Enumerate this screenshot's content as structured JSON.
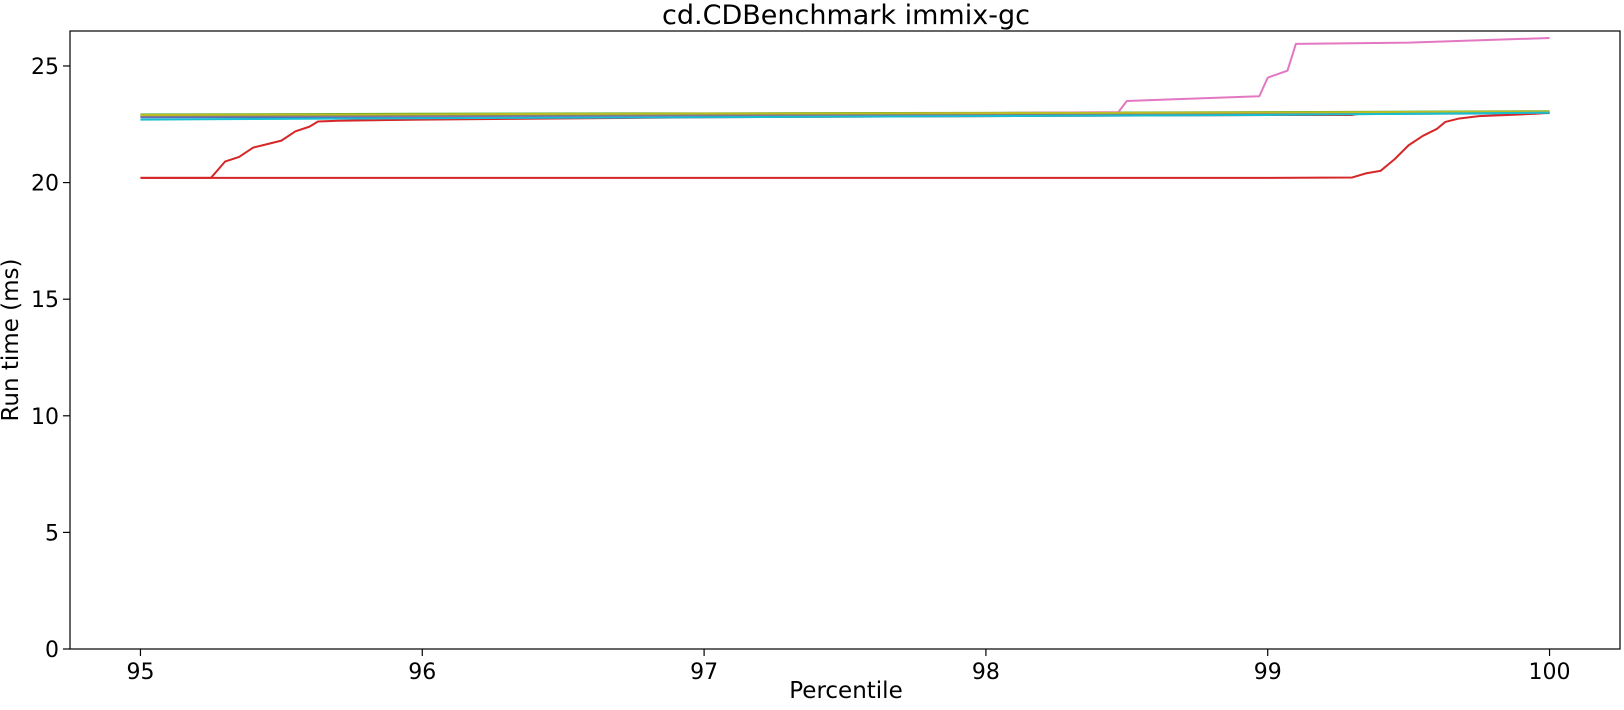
{
  "chart_data": {
    "type": "line",
    "title": "cd.CDBenchmark immix-gc",
    "xlabel": "Percentile",
    "ylabel": "Run time (ms)",
    "xlim": [
      94.75,
      100.25
    ],
    "ylim": [
      0,
      26.5
    ],
    "xticks": [
      95,
      96,
      97,
      98,
      99,
      100
    ],
    "yticks": [
      0,
      5,
      10,
      15,
      20,
      25
    ],
    "grid": false,
    "series": [
      {
        "color": "#1f77b4",
        "x": [
          95,
          96,
          97,
          98,
          99,
          100
        ],
        "y": [
          22.8,
          22.82,
          22.85,
          22.88,
          22.92,
          22.98
        ]
      },
      {
        "color": "#ff7f0e",
        "x": [
          95,
          96,
          97,
          98,
          99,
          100
        ],
        "y": [
          22.85,
          22.87,
          22.9,
          22.93,
          22.96,
          23.0
        ]
      },
      {
        "color": "#2ca02c",
        "x": [
          95,
          96,
          97,
          98,
          99,
          100
        ],
        "y": [
          22.92,
          22.95,
          22.97,
          22.99,
          23.02,
          23.06
        ]
      },
      {
        "color": "#d62728",
        "x": [
          95,
          95.25,
          95.3,
          95.35,
          95.4,
          95.45,
          95.5,
          95.55,
          95.6,
          95.63,
          95.7,
          96,
          97,
          98,
          99,
          99.3,
          99.35,
          99.4,
          99.45,
          99.5,
          99.55,
          99.6,
          99.65,
          99.7,
          99.8,
          99.9,
          100
        ],
        "y": [
          20.2,
          20.2,
          20.9,
          21.1,
          21.5,
          21.65,
          21.8,
          22.2,
          22.4,
          22.62,
          22.65,
          22.7,
          22.8,
          22.85,
          22.9,
          22.9,
          23.0,
          23.0,
          23.0,
          23.0,
          23.0,
          23.0,
          23.0,
          23.0,
          23.0,
          23.0,
          23.0
        ]
      },
      {
        "color": "#d62728",
        "x": [
          95,
          96,
          97,
          98,
          99,
          99.3,
          99.35,
          99.4,
          99.45,
          99.5,
          99.55,
          99.6,
          99.63,
          99.68,
          99.75,
          99.85,
          99.95,
          100
        ],
        "y": [
          20.2,
          20.2,
          20.2,
          20.2,
          20.2,
          20.22,
          20.4,
          20.5,
          21.0,
          21.6,
          22.0,
          22.3,
          22.6,
          22.75,
          22.85,
          22.9,
          22.95,
          23.0
        ]
      },
      {
        "color": "#9467bd",
        "x": [
          95,
          96,
          97,
          98,
          99,
          100
        ],
        "y": [
          22.83,
          22.85,
          22.88,
          22.91,
          22.95,
          23.0
        ]
      },
      {
        "color": "#e377c2",
        "x": [
          95,
          96,
          97,
          98,
          98.47,
          98.5,
          98.97,
          99.0,
          99.07,
          99.1,
          99.5,
          100
        ],
        "y": [
          22.87,
          22.9,
          22.93,
          22.98,
          23.02,
          23.5,
          23.7,
          24.5,
          24.8,
          25.95,
          26.0,
          26.2
        ]
      },
      {
        "color": "#7f7f7f",
        "x": [
          95,
          96,
          97,
          98,
          99,
          100
        ],
        "y": [
          22.86,
          22.88,
          22.91,
          22.94,
          22.97,
          23.02
        ]
      },
      {
        "color": "#bcbd22",
        "x": [
          95,
          96,
          97,
          98,
          99,
          100
        ],
        "y": [
          22.9,
          22.93,
          22.96,
          22.98,
          23.01,
          23.05
        ]
      },
      {
        "color": "#17becf",
        "x": [
          95,
          95.3,
          96,
          97,
          98,
          99,
          100
        ],
        "y": [
          22.7,
          22.72,
          22.76,
          22.8,
          22.85,
          22.9,
          23.0
        ]
      }
    ]
  }
}
